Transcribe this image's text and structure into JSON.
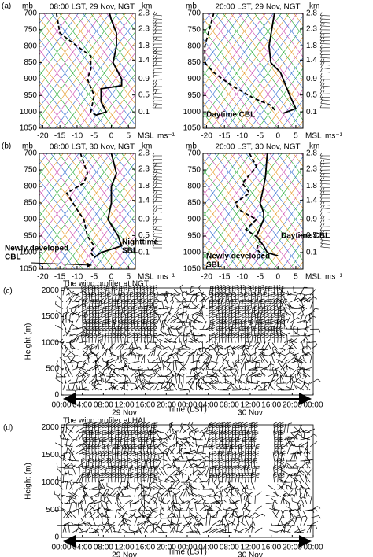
{
  "chart_data": [
    {
      "type": "sounding",
      "panel_label": "(a)",
      "title": "08:00 LST, 29 Nov, NGT",
      "ylabel": "mb",
      "y2label": "km",
      "x_note": "MSL",
      "barb_unit": "ms⁻¹",
      "xlim": [
        -21,
        7
      ],
      "xticks": [
        -20,
        -15,
        -10,
        -5,
        0,
        5
      ],
      "ylim": [
        1050,
        700
      ],
      "yticks": [
        700,
        750,
        800,
        850,
        900,
        950,
        1000,
        1050
      ],
      "y2ticks": [
        2.8,
        2.3,
        1.8,
        1.4,
        0.9,
        0.5,
        0.1
      ],
      "lines": [
        {
          "style": "solid",
          "color": "#000000",
          "values": [
            -0.5,
            0,
            1.5,
            1.5,
            0.5,
            3,
            3,
            -3,
            -3,
            -1.5,
            -4.5
          ],
          "pressure": [
            700,
            720,
            760,
            800,
            850,
            900,
            920,
            930,
            970,
            1000,
            1010
          ]
        },
        {
          "style": "dashed",
          "color": "#000000",
          "values": [
            -16,
            -15,
            -10,
            -6,
            -6,
            -7,
            -5,
            -6,
            -4.5
          ],
          "pressure": [
            700,
            760,
            800,
            830,
            870,
            900,
            950,
            1000,
            1010
          ]
        }
      ],
      "annotations": []
    },
    {
      "type": "sounding",
      "title": "20:00 LST, 29 Nov, NGT",
      "ylabel": "mb",
      "y2label": "km",
      "x_note": "MSL",
      "barb_unit": "ms⁻¹",
      "xlim": [
        -21,
        7
      ],
      "xticks": [
        -20,
        -15,
        -10,
        -5,
        0,
        5
      ],
      "ylim": [
        1050,
        700
      ],
      "yticks": [
        700,
        750,
        800,
        850,
        900,
        950,
        1000,
        1050
      ],
      "y2ticks": [
        2.8,
        2.3,
        1.8,
        1.4,
        0.9,
        0.5,
        0.1
      ],
      "lines": [
        {
          "style": "solid",
          "color": "#000000",
          "values": [
            -1,
            -2.5,
            -2,
            0.7,
            3.3,
            5,
            1.3
          ],
          "pressure": [
            700,
            800,
            850,
            880,
            950,
            990,
            1005
          ]
        },
        {
          "style": "dashed",
          "color": "#000000",
          "values": [
            -18,
            -20.5,
            -20.5,
            -18,
            -13,
            -6.5,
            -2,
            -0.5
          ],
          "pressure": [
            700,
            800,
            850,
            880,
            920,
            960,
            980,
            1000
          ]
        }
      ],
      "annotations": [
        {
          "text": [
            "Daytime CBL"
          ]
        }
      ]
    },
    {
      "type": "sounding",
      "panel_label": "(b)",
      "title": "08:00 LST, 30 Nov, NGT",
      "ylabel": "mb",
      "y2label": "km",
      "x_note": "MSL",
      "barb_unit": "ms⁻¹",
      "xlim": [
        -21,
        7
      ],
      "xticks": [
        -20,
        -15,
        -10,
        -5,
        0,
        5
      ],
      "ylim": [
        1050,
        700
      ],
      "yticks": [
        700,
        750,
        800,
        850,
        900,
        950,
        1000,
        1050
      ],
      "y2ticks": [
        2.8,
        2.3,
        1.8,
        1.4,
        0.9,
        0.5,
        0.1
      ],
      "lines": [
        {
          "style": "solid",
          "color": "#000000",
          "values": [
            0,
            1.5,
            0,
            0,
            -1,
            2,
            3,
            -3,
            -5
          ],
          "pressure": [
            700,
            760,
            800,
            850,
            900,
            950,
            980,
            1000,
            1015
          ]
        },
        {
          "style": "dashed",
          "color": "#000000",
          "values": [
            -9,
            -7,
            -8,
            -13,
            -10,
            -8,
            -7,
            -5,
            -6,
            -5
          ],
          "pressure": [
            700,
            760,
            790,
            820,
            870,
            900,
            950,
            980,
            1000,
            1015
          ]
        }
      ],
      "annotations": [
        {
          "text": [
            "Nighttime",
            "SBL"
          ]
        },
        {
          "text": [
            "Newly developed",
            "CBL"
          ]
        }
      ]
    },
    {
      "type": "sounding",
      "title": "20:00 LST, 30 Nov, NGT",
      "ylabel": "mb",
      "y2label": "km",
      "x_note": "MSL",
      "barb_unit": "ms⁻¹",
      "xlim": [
        -21,
        7
      ],
      "xticks": [
        -20,
        -15,
        -10,
        -5,
        0,
        5
      ],
      "ylim": [
        1050,
        700
      ],
      "yticks": [
        700,
        750,
        800,
        850,
        900,
        950,
        1000,
        1050
      ],
      "y2ticks": [
        2.8,
        2.3,
        1.8,
        1.4,
        0.9,
        0.5,
        0.1
      ],
      "lines": [
        {
          "style": "solid",
          "color": "#000000",
          "values": [
            -3,
            -3.5,
            -4,
            -5,
            -4,
            -4,
            -6,
            -4,
            -3,
            0
          ],
          "pressure": [
            700,
            770,
            800,
            850,
            880,
            900,
            950,
            980,
            1000,
            1010
          ]
        },
        {
          "style": "dashed",
          "color": "#000000",
          "values": [
            -8,
            -6,
            -10,
            -8,
            -12,
            -11,
            -6,
            -9,
            -5,
            -6,
            -4
          ],
          "pressure": [
            700,
            740,
            790,
            820,
            850,
            870,
            900,
            930,
            960,
            990,
            1010
          ]
        }
      ],
      "annotations": [
        {
          "text": [
            "Daytime CBL"
          ]
        },
        {
          "text": [
            "Newly developed",
            "SBL"
          ]
        }
      ]
    },
    {
      "type": "wind_profiler",
      "panel_label": "(c)",
      "title": "The wind profiler at NGT",
      "ylabel": "Height (m)",
      "xlabel": "Time (LST)",
      "xlim": [
        0,
        48
      ],
      "ylim": [
        0,
        2050
      ],
      "yticks": [
        0,
        500,
        1000,
        1500,
        2000
      ],
      "xticks": [
        {
          "value": 0,
          "label": "00:00"
        },
        {
          "value": 4,
          "label": "04:00"
        },
        {
          "value": 8,
          "label": "08:00"
        },
        {
          "value": 12,
          "label": "12:00"
        },
        {
          "value": 16,
          "label": "16:00"
        },
        {
          "value": 20,
          "label": "20:00"
        },
        {
          "value": 24,
          "label": "00:00"
        },
        {
          "value": 28,
          "label": "04:00"
        },
        {
          "value": 32,
          "label": "08:00"
        },
        {
          "value": 36,
          "label": "12:00"
        },
        {
          "value": 40,
          "label": "16:00"
        },
        {
          "value": 44,
          "label": "20:00"
        },
        {
          "value": 48,
          "label": "00:00"
        }
      ],
      "date_labels": [
        {
          "value": 12,
          "label": "29 Nov"
        },
        {
          "value": 36,
          "label": "30 Nov"
        }
      ],
      "data_gap_hours": []
    },
    {
      "type": "wind_profiler",
      "panel_label": "(d)",
      "title": "The wind profiler at HAI",
      "ylabel": "Height (m)",
      "xlabel": "Time (LST)",
      "xlim": [
        0,
        48
      ],
      "ylim": [
        0,
        2050
      ],
      "yticks": [
        0,
        500,
        1000,
        1500,
        2000
      ],
      "xticks": [
        {
          "value": 0,
          "label": "00:00"
        },
        {
          "value": 4,
          "label": "04:00"
        },
        {
          "value": 8,
          "label": "08:00"
        },
        {
          "value": 12,
          "label": "12:00"
        },
        {
          "value": 16,
          "label": "16:00"
        },
        {
          "value": 20,
          "label": "20:00"
        },
        {
          "value": 24,
          "label": "00:00"
        },
        {
          "value": 28,
          "label": "04:00"
        },
        {
          "value": 32,
          "label": "08:00"
        },
        {
          "value": 36,
          "label": "12:00"
        },
        {
          "value": 40,
          "label": "16:00"
        },
        {
          "value": 44,
          "label": "20:00"
        },
        {
          "value": 48,
          "label": "00:00"
        }
      ],
      "date_labels": [
        {
          "value": 12,
          "label": "29 Nov"
        },
        {
          "value": 36,
          "label": "30 Nov"
        }
      ],
      "data_gap_hours": [
        37,
        40
      ]
    }
  ]
}
